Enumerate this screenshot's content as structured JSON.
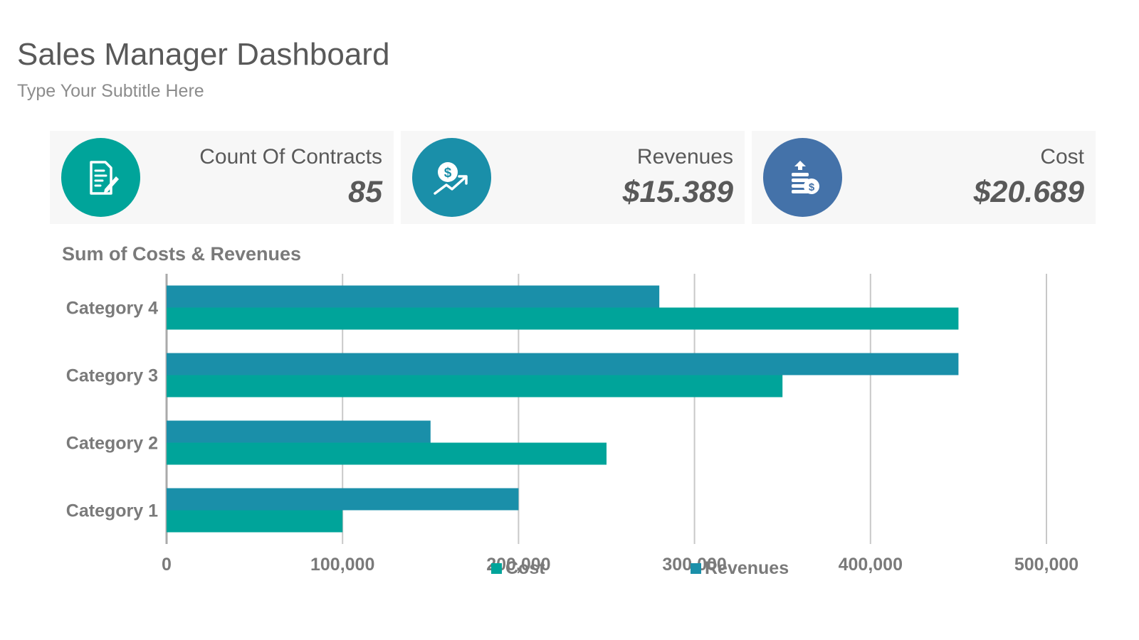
{
  "header": {
    "title": "Sales Manager Dashboard",
    "subtitle": "Type Your Subtitle Here"
  },
  "cards": [
    {
      "label": "Count Of Contracts",
      "value": "85",
      "color": "#00a49a",
      "icon": "contract-icon"
    },
    {
      "label": "Revenues",
      "value": "$15.389",
      "color": "#1a8fa9",
      "icon": "revenue-growth-icon"
    },
    {
      "label": "Cost",
      "value": "$20.689",
      "color": "#4472a9",
      "icon": "coins-cost-icon"
    }
  ],
  "chart_data": {
    "type": "bar",
    "orientation": "horizontal",
    "title": "Sum of Costs & Revenues",
    "categories": [
      "Category 1",
      "Category 2",
      "Category 3",
      "Category 4"
    ],
    "series": [
      {
        "name": "Cost",
        "color": "#00a49a",
        "values": [
          100000,
          250000,
          350000,
          450000
        ]
      },
      {
        "name": "Revenues",
        "color": "#1a8fa9",
        "values": [
          200000,
          150000,
          450000,
          280000
        ]
      }
    ],
    "xlim": [
      0,
      500000
    ],
    "xticks": [
      "0",
      "100,000",
      "200,000",
      "300,000",
      "400,000",
      "500,000"
    ],
    "grid": true,
    "legend": "bottom"
  }
}
